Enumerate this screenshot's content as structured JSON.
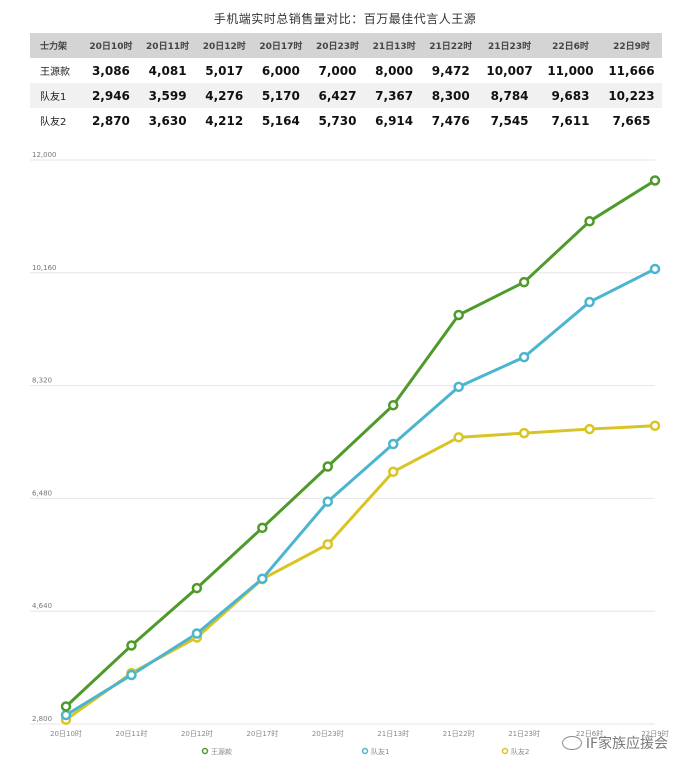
{
  "chart_data": {
    "type": "line",
    "title": "手机端实时总销售量对比：百万最佳代言人王源",
    "table_header": [
      "士力架",
      "20日10时",
      "20日11时",
      "20日12时",
      "20日17时",
      "20日23时",
      "21日13时",
      "21日22时",
      "21日23时",
      "22日6时",
      "22日9时"
    ],
    "categories": [
      "20日10时",
      "20日11时",
      "20日12时",
      "20日17时",
      "20日23时",
      "21日13时",
      "21日22时",
      "21日23时",
      "22日6时",
      "22日9时"
    ],
    "series": [
      {
        "name": "王源款",
        "color": "#4e9a2a",
        "values": [
          3086,
          4081,
          5017,
          6000,
          7000,
          8000,
          9472,
          10007,
          11000,
          11666
        ],
        "labels": [
          "3,086",
          "4,081",
          "5,017",
          "6,000",
          "7,000",
          "8,000",
          "9,472",
          "10,007",
          "11,000",
          "11,666"
        ]
      },
      {
        "name": "队友1",
        "color": "#4bb5cf",
        "values": [
          2946,
          3599,
          4276,
          5170,
          6427,
          7367,
          8300,
          8784,
          9683,
          10223
        ],
        "labels": [
          "2,946",
          "3,599",
          "4,276",
          "5,170",
          "6,427",
          "7,367",
          "8,300",
          "8,784",
          "9,683",
          "10,223"
        ]
      },
      {
        "name": "队友2",
        "color": "#d9c424",
        "values": [
          2870,
          3630,
          4212,
          5164,
          5730,
          6914,
          7476,
          7545,
          7611,
          7665
        ],
        "labels": [
          "2,870",
          "3,630",
          "4,212",
          "5,164",
          "5,730",
          "6,914",
          "7,476",
          "7,545",
          "7,611",
          "7,665"
        ]
      }
    ],
    "y_ticks": [
      "2,800",
      "4,640",
      "6,480",
      "8,320",
      "10,160",
      "12,000"
    ],
    "ylim": [
      2800,
      12000
    ],
    "grid": true,
    "legend_placement": "bottom"
  },
  "watermark": "IF家族应援会",
  "colors": {
    "header_bg": "#d4d4d4",
    "grid": "#e6e6e6"
  }
}
